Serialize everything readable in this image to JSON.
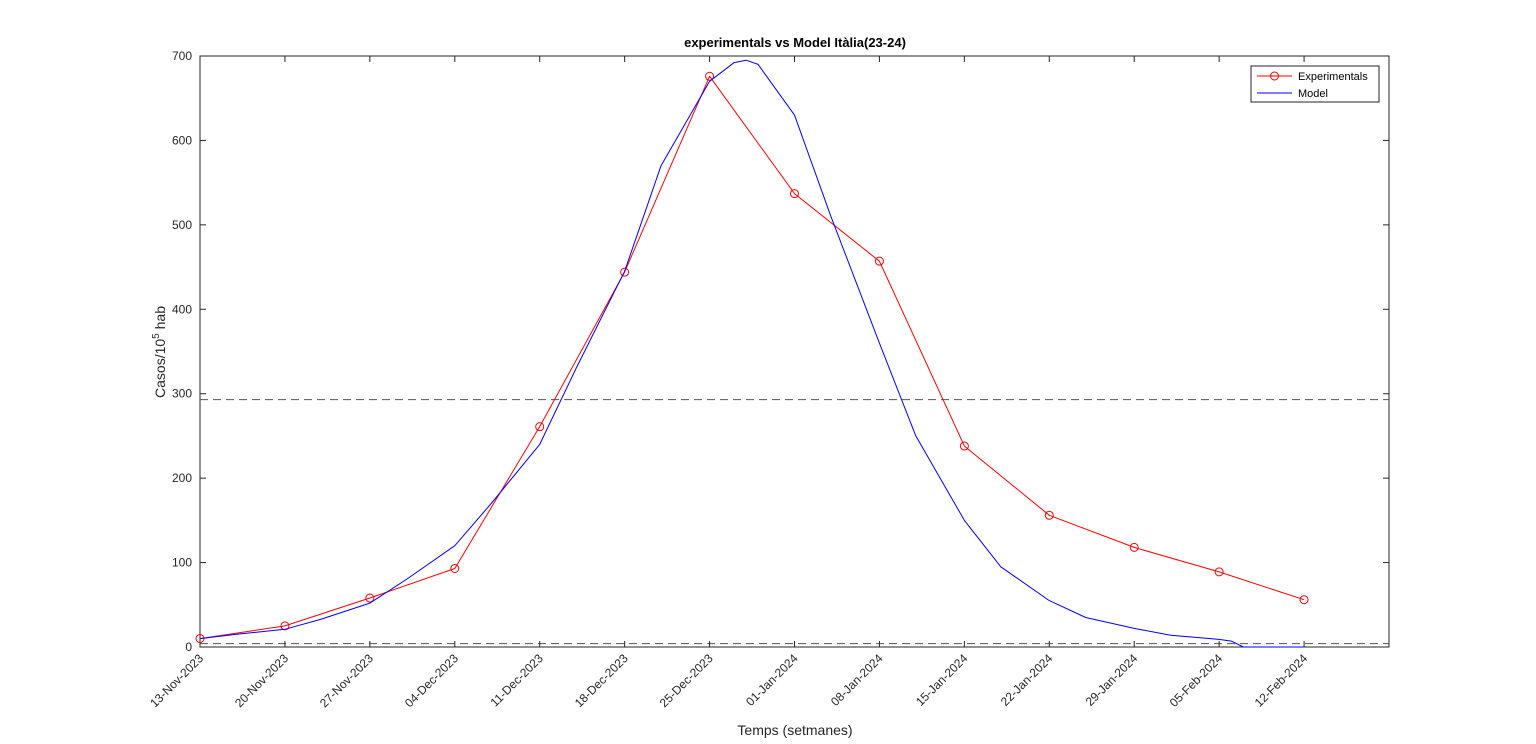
{
  "chart_data": {
    "type": "line",
    "title": "experimentals vs Model Itàlia(23-24)",
    "xlabel": "Temps (setmanes)",
    "ylabel": {
      "base": "Casos/10",
      "superscript": "5",
      "suffix": " hab"
    },
    "ylim": [
      0,
      700
    ],
    "yticks": [
      0,
      100,
      200,
      300,
      400,
      500,
      600,
      700
    ],
    "xlim": [
      0,
      14
    ],
    "xtick_labels": [
      "13-Nov-2023",
      "20-Nov-2023",
      "27-Nov-2023",
      "04-Dec-2023",
      "11-Dec-2023",
      "18-Dec-2023",
      "25-Dec-2023",
      "01-Jan-2024",
      "08-Jan-2024",
      "15-Jan-2024",
      "22-Jan-2024",
      "29-Jan-2024",
      "05-Feb-2024",
      "12-Feb-2024"
    ],
    "grid": false,
    "legend_position": "top-right",
    "reference_lines": [
      {
        "y": 293,
        "style": "dashed",
        "color": "#555555"
      },
      {
        "y": 4,
        "style": "dashed",
        "color": "#555555"
      }
    ],
    "series": [
      {
        "name": "Experimentals",
        "color": "#ff0000",
        "marker": "circle",
        "x": [
          "13-Nov-2023",
          "20-Nov-2023",
          "27-Nov-2023",
          "04-Dec-2023",
          "11-Dec-2023",
          "18-Dec-2023",
          "25-Dec-2023",
          "01-Jan-2024",
          "08-Jan-2024",
          "15-Jan-2024",
          "22-Jan-2024",
          "29-Jan-2024",
          "05-Feb-2024",
          "12-Feb-2024"
        ],
        "values": [
          10,
          25,
          58,
          93,
          261,
          444,
          676,
          537,
          457,
          238,
          156,
          118,
          89,
          56
        ]
      },
      {
        "name": "Model",
        "color": "#0000ff",
        "marker": "none",
        "x": [
          "13-Nov-2023",
          "16-Nov-2023",
          "20-Nov-2023",
          "23-Nov-2023",
          "27-Nov-2023",
          "30-Nov-2023",
          "04-Dec-2023",
          "07-Dec-2023",
          "11-Dec-2023",
          "14-Dec-2023",
          "18-Dec-2023",
          "21-Dec-2023",
          "25-Dec-2023",
          "27-Dec-2023",
          "28-Dec-2023",
          "29-Dec-2023",
          "30-Dec-2023",
          "01-Jan-2024",
          "04-Jan-2024",
          "08-Jan-2024",
          "11-Jan-2024",
          "15-Jan-2024",
          "18-Jan-2024",
          "22-Jan-2024",
          "25-Jan-2024",
          "29-Jan-2024",
          "01-Feb-2024",
          "05-Feb-2024",
          "06-Feb-2024",
          "07-Feb-2024",
          "08-Feb-2024",
          "12-Feb-2024"
        ],
        "values": [
          10,
          15,
          21,
          33,
          52,
          80,
          120,
          170,
          240,
          330,
          445,
          570,
          670,
          692,
          695,
          690,
          670,
          630,
          510,
          360,
          250,
          150,
          95,
          55,
          35,
          22,
          14,
          9,
          7,
          0,
          0,
          0
        ]
      }
    ]
  }
}
